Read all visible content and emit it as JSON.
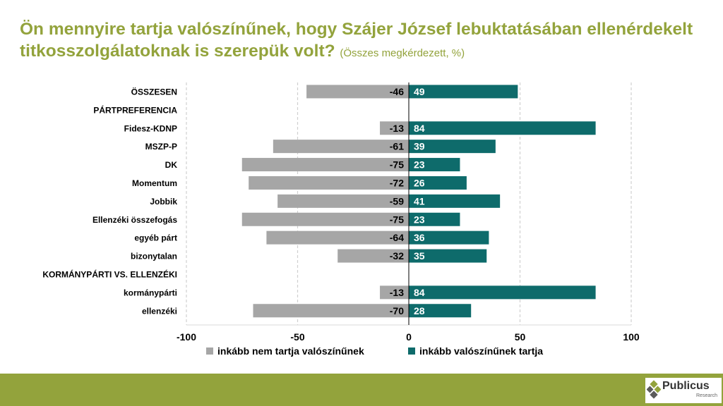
{
  "title": {
    "main": "Ön mennyire tartja valószínűnek, hogy Szájer József lebuktatásában ellenérdekelt titkosszolgálatoknak is szerepük volt?",
    "subtitle": "(Összes megkérdezett, %)"
  },
  "chart_data": {
    "type": "bar",
    "orientation": "horizontal",
    "stacked": "diverging",
    "categories": [
      "ÖSSZESEN",
      "PÁRTPREFERENCIA",
      "Fidesz-KDNP",
      "MSZP-P",
      "DK",
      "Momentum",
      "Jobbik",
      "Ellenzéki összefogás",
      "egyéb párt",
      "bizonytalan",
      "KORMÁNYPÁRTI VS. ELLENZÉKI",
      "kormánypárti",
      "ellenzéki"
    ],
    "series": [
      {
        "name": "inkább nem tartja valószínűnek",
        "color": "#a6a6a6",
        "values": [
          -46,
          null,
          -13,
          -61,
          -75,
          -72,
          -59,
          -75,
          -64,
          -32,
          null,
          -13,
          -70
        ]
      },
      {
        "name": "inkább valószínűnek tartja",
        "color": "#0e6b6b",
        "values": [
          49,
          null,
          84,
          39,
          23,
          26,
          41,
          23,
          36,
          35,
          null,
          84,
          28
        ]
      }
    ],
    "xlim": [
      -100,
      100
    ],
    "xticks": [
      -100,
      -50,
      0,
      50,
      100
    ],
    "xtick_labels": [
      "-100",
      "-50",
      "0",
      "50",
      "100"
    ],
    "grid": "vertical dashed",
    "legend": "bottom"
  },
  "footer": {
    "brand": "Publicus",
    "brand_sub": "Research"
  }
}
